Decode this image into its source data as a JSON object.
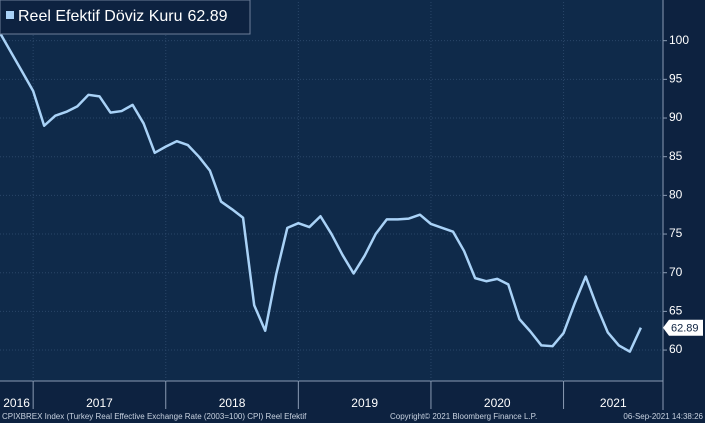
{
  "chart_data": {
    "type": "line",
    "title": "CPIXBREX Index (Turkey Real Effective Exchange Rate (2003=100) CPI) Reel Efektif",
    "copyright": "Copyright© 2021 Bloomberg Finance L.P.",
    "timestamp": "06-Sep-2021 14:38:26",
    "x": [
      2016.75,
      2016.833,
      2016.917,
      2017,
      2017.083,
      2017.167,
      2017.25,
      2017.333,
      2017.417,
      2017.5,
      2017.583,
      2017.667,
      2017.75,
      2017.833,
      2017.917,
      2018,
      2018.083,
      2018.167,
      2018.25,
      2018.333,
      2018.417,
      2018.5,
      2018.583,
      2018.667,
      2018.75,
      2018.833,
      2018.917,
      2019,
      2019.083,
      2019.167,
      2019.25,
      2019.333,
      2019.417,
      2019.5,
      2019.583,
      2019.667,
      2019.75,
      2019.833,
      2019.917,
      2020,
      2020.083,
      2020.167,
      2020.25,
      2020.333,
      2020.417,
      2020.5,
      2020.583,
      2020.667,
      2020.75,
      2020.833,
      2020.917,
      2021,
      2021.083,
      2021.167,
      2021.25,
      2021.333,
      2021.417,
      2021.5,
      2021.583
    ],
    "series": [
      {
        "name": "Reel Efektif Döviz Kuru",
        "color": "#a9d2f7",
        "values": [
          101,
          98.5,
          96,
          93.5,
          89,
          90.3,
          90.8,
          91.5,
          93,
          92.8,
          90.7,
          90.9,
          91.7,
          89.3,
          85.5,
          86.3,
          87,
          86.5,
          85,
          83.2,
          79.2,
          78.2,
          77.1,
          65.8,
          62.5,
          69.8,
          75.8,
          76.4,
          75.9,
          77.3,
          75,
          72.3,
          69.9,
          72.2,
          75,
          76.9,
          76.9,
          77,
          77.5,
          76.3,
          75.8,
          75.3,
          72.8,
          69.3,
          68.9,
          69.2,
          68.5,
          64,
          62.4,
          60.6,
          60.5,
          62.2,
          66,
          69.5,
          65.7,
          62.3,
          60.6,
          59.8,
          62.89
        ]
      }
    ],
    "xlim": [
      2016.75,
      2021.75
    ],
    "xticks": [
      2016,
      2017,
      2018,
      2019,
      2020,
      2021
    ],
    "ylim": [
      56,
      105
    ],
    "yticks": [
      60,
      65,
      70,
      75,
      80,
      85,
      90,
      95,
      100
    ],
    "grid": true
  }
}
